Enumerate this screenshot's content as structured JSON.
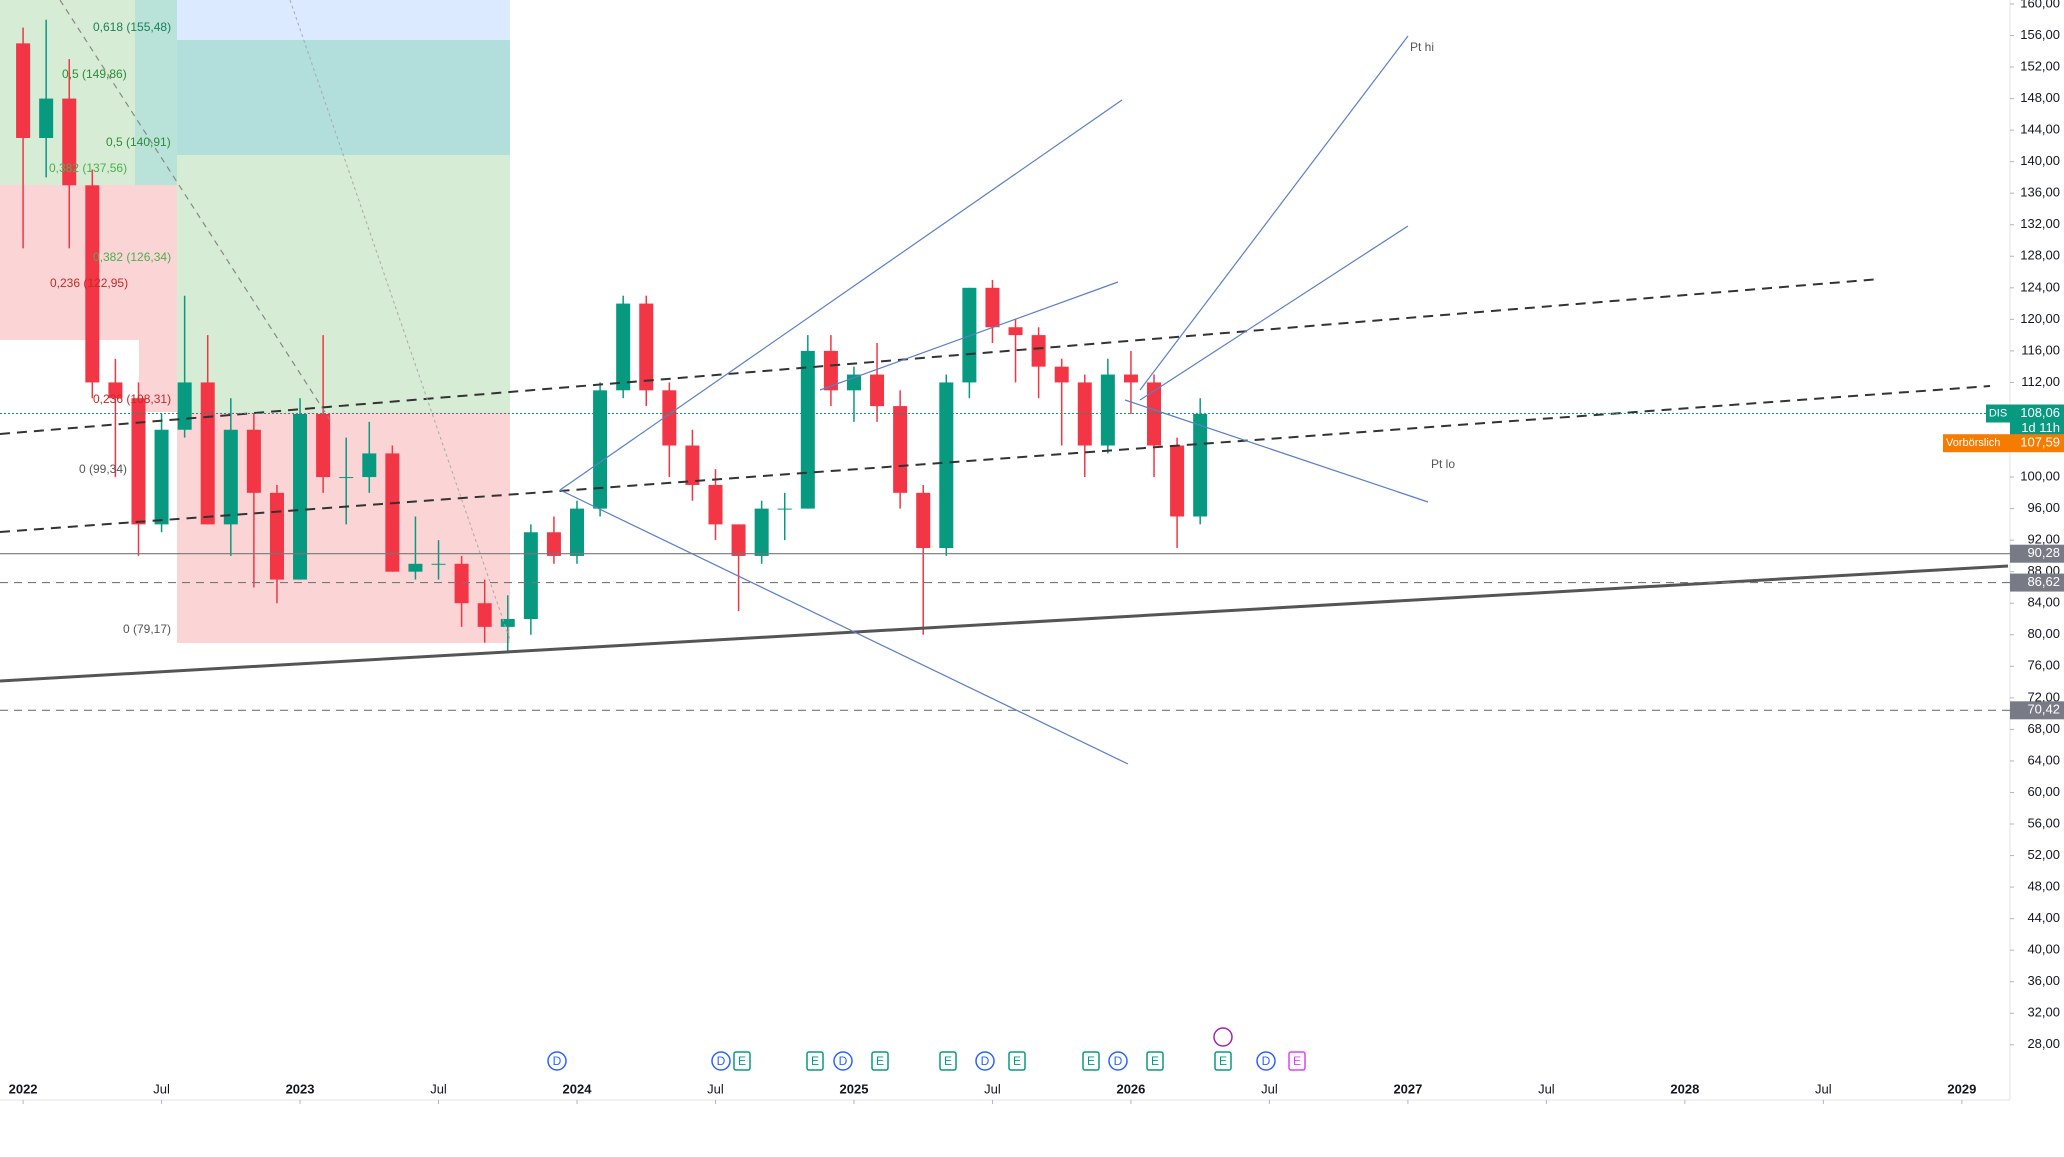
{
  "chart_data": {
    "type": "candlestick",
    "symbol": "DIS",
    "x": [
      "2022-01",
      "2022-02",
      "2022-03",
      "2022-04",
      "2022-05",
      "2022-06",
      "2022-07",
      "2022-08",
      "2022-09",
      "2022-10",
      "2022-11",
      "2022-12",
      "2023-01",
      "2023-02",
      "2023-03",
      "2023-04",
      "2023-05",
      "2023-06",
      "2023-07",
      "2023-08",
      "2023-09",
      "2023-10",
      "2023-11",
      "2023-12",
      "2024-01",
      "2024-02",
      "2024-03",
      "2024-04",
      "2024-05",
      "2024-06",
      "2024-07",
      "2024-08",
      "2024-09",
      "2024-10",
      "2024-11",
      "2024-12",
      "2025-01",
      "2025-02",
      "2025-03",
      "2025-04",
      "2025-05",
      "2025-06",
      "2025-07",
      "2025-08",
      "2025-09",
      "2025-10",
      "2025-11",
      "2025-12",
      "2026-01",
      "2026-02",
      "2026-03",
      "2026-04"
    ],
    "open": [
      155,
      143,
      148,
      137,
      112,
      110,
      94,
      106,
      112,
      94,
      106,
      98,
      87,
      108,
      100,
      100,
      103,
      88,
      89,
      89,
      84,
      81,
      82,
      93,
      90,
      96,
      111,
      122,
      111,
      104,
      99,
      94,
      90,
      96,
      96,
      116,
      111,
      113,
      109,
      98,
      91,
      112,
      124,
      119,
      118,
      114,
      112,
      104,
      113,
      112,
      104,
      95
    ],
    "high": [
      157,
      158,
      153,
      139,
      115,
      112,
      108,
      123,
      118,
      110,
      108,
      99,
      110,
      118,
      105,
      107,
      104,
      95,
      92,
      90,
      87,
      85,
      94,
      95,
      97,
      112,
      123,
      123,
      112,
      106,
      101,
      94,
      97,
      98,
      118,
      118,
      114,
      117,
      111,
      99,
      113,
      124,
      125,
      120,
      119,
      115,
      113,
      115,
      116,
      113,
      105,
      110
    ],
    "low": [
      129,
      138,
      129,
      110,
      100,
      90,
      93,
      105,
      94,
      90,
      86,
      84,
      87,
      98,
      94,
      98,
      88,
      87,
      87,
      81,
      79,
      78,
      80,
      89,
      89,
      95,
      110,
      109,
      100,
      97,
      92,
      83,
      89,
      92,
      96,
      109,
      107,
      107,
      96,
      80,
      90,
      110,
      117,
      112,
      110,
      104,
      100,
      103,
      108,
      100,
      91,
      94
    ],
    "close": [
      143,
      148,
      137,
      112,
      110,
      94,
      106,
      112,
      94,
      106,
      98,
      87,
      108,
      100,
      100,
      103,
      88,
      89,
      89,
      84,
      81,
      82,
      93,
      90,
      96,
      111,
      122,
      111,
      104,
      99,
      94,
      90,
      96,
      96,
      116,
      111,
      113,
      109,
      98,
      91,
      112,
      124,
      119,
      118,
      114,
      112,
      104,
      113,
      112,
      104,
      95,
      108
    ],
    "up_color": "#089981",
    "down_color": "#f23645",
    "xlim": [
      "2021-12",
      "2029-03"
    ],
    "xticks": [
      {
        "value": "2022-01",
        "label": "2022"
      },
      {
        "value": "2022-07",
        "label": "Jul"
      },
      {
        "value": "2023-01",
        "label": "2023"
      },
      {
        "value": "2023-07",
        "label": "Jul"
      },
      {
        "value": "2024-01",
        "label": "2024"
      },
      {
        "value": "2024-07",
        "label": "Jul"
      },
      {
        "value": "2025-01",
        "label": "2025"
      },
      {
        "value": "2025-07",
        "label": "Jul"
      },
      {
        "value": "2026-01",
        "label": "2026"
      },
      {
        "value": "2026-07",
        "label": "Jul"
      },
      {
        "value": "2027-01",
        "label": "2027"
      },
      {
        "value": "2027-07",
        "label": "Jul"
      },
      {
        "value": "2028-01",
        "label": "2028"
      },
      {
        "value": "2028-07",
        "label": "Jul"
      },
      {
        "value": "2029-01",
        "label": "2029"
      }
    ],
    "ylim": [
      21,
      160.5
    ],
    "yticks": [
      {
        "value": 28,
        "label": "28,00"
      },
      {
        "value": 32,
        "label": "32,00"
      },
      {
        "value": 36,
        "label": "36,00"
      },
      {
        "value": 40,
        "label": "40,00"
      },
      {
        "value": 44,
        "label": "44,00"
      },
      {
        "value": 48,
        "label": "48,00"
      },
      {
        "value": 52,
        "label": "52,00"
      },
      {
        "value": 56,
        "label": "56,00"
      },
      {
        "value": 60,
        "label": "60,00"
      },
      {
        "value": 64,
        "label": "64,00"
      },
      {
        "value": 68,
        "label": "68,00"
      },
      {
        "value": 72,
        "label": "72,00"
      },
      {
        "value": 76,
        "label": "76,00"
      },
      {
        "value": 80,
        "label": "80,00"
      },
      {
        "value": 84,
        "label": "84,00"
      },
      {
        "value": 88,
        "label": "88,00"
      },
      {
        "value": 92,
        "label": "92,00"
      },
      {
        "value": 96,
        "label": "96,00"
      },
      {
        "value": 100,
        "label": "100,00"
      },
      {
        "value": 104,
        "label": "104,00"
      },
      {
        "value": 108,
        "label": "108,00"
      },
      {
        "value": 112,
        "label": "112,00"
      },
      {
        "value": 116,
        "label": "116,00"
      },
      {
        "value": 120,
        "label": "120,00"
      },
      {
        "value": 124,
        "label": "124,00"
      },
      {
        "value": 128,
        "label": "128,00"
      },
      {
        "value": 132,
        "label": "132,00"
      },
      {
        "value": 136,
        "label": "136,00"
      },
      {
        "value": 140,
        "label": "140,00"
      },
      {
        "value": 144,
        "label": "144,00"
      },
      {
        "value": 148,
        "label": "148,00"
      },
      {
        "value": 152,
        "label": "152,00"
      },
      {
        "value": 156,
        "label": "156,00"
      },
      {
        "value": 160,
        "label": "160,00"
      }
    ],
    "last_price": {
      "value": 108.06,
      "label": "108,06"
    },
    "countdown": "1d 11h",
    "premarket": {
      "name": "Vorbörslich",
      "value": 107.59,
      "label": "107,59"
    },
    "hlines": [
      {
        "value": 90.28,
        "label": "90,28"
      },
      {
        "value": 86.62,
        "label": "86,62"
      },
      {
        "value": 70.42,
        "label": "70,42"
      }
    ],
    "annotations": [
      "0,618 (155,48)",
      "0,5 (149,86)",
      "0,5 (140,91)",
      "0,382 (137,56)",
      "0,382 (126,34)",
      "0,236 (122,95)",
      "0,236 (108,31)",
      "0 (99,34)",
      "0 (79,17)",
      "Pt hi",
      "Pt lo"
    ],
    "events": [
      "D",
      "D",
      "E",
      "E",
      "D",
      "E",
      "E",
      "D",
      "E",
      "E",
      "D",
      "E",
      "E",
      "D",
      "E"
    ]
  }
}
